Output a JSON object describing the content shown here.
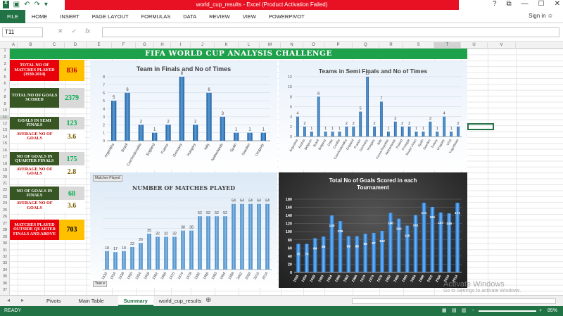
{
  "window": {
    "title": "world_cup_results - Excel (Product Activation Failed)",
    "help": "?",
    "restore": "⧉",
    "minimize": "—",
    "maximize": "☐",
    "close": "✕"
  },
  "ribbon": {
    "tabs": [
      "FILE",
      "HOME",
      "INSERT",
      "PAGE LAYOUT",
      "FORMULAS",
      "DATA",
      "REVIEW",
      "VIEW",
      "POWERPIVOT"
    ],
    "sign_in": "Sign in"
  },
  "formula_bar": {
    "name_box": "T11",
    "value": "",
    "fx": "fx"
  },
  "columns": [
    "A",
    "B",
    "C",
    "D",
    "E",
    "F",
    "G",
    "H",
    "I",
    "J",
    "K",
    "L",
    "M",
    "N",
    "O",
    "P",
    "Q",
    "R",
    "S",
    "T",
    "U",
    "V"
  ],
  "rows": [
    "1",
    "2",
    "3",
    "4",
    "5",
    "6",
    "7",
    "8",
    "9",
    "10",
    "11",
    "12",
    "13",
    "14",
    "15",
    "16",
    "17",
    "18",
    "19",
    "20",
    "21",
    "22",
    "23",
    "24",
    "25",
    "26",
    "27",
    "28",
    "29",
    "30",
    "31",
    "32",
    "33",
    "34",
    "35",
    "36",
    "37"
  ],
  "banner": "FIFA WORLD CUP ANALYSIS CHALLENGE",
  "kpis": [
    {
      "label": "TOTAL NO OF MATCHES PLAYED (1930-2014)",
      "value": "836",
      "label_bg": "#e8000b",
      "value_bg": "#ffc000",
      "value_color": "#c00000"
    },
    {
      "label": "TOTAL NO OF GOALS SCORED",
      "value": "2379",
      "label_bg": "#375623",
      "value_bg": "#d9d9d9",
      "value_color": "#00b050"
    },
    {
      "label": "GOALS IN SEMI FINALS",
      "value": "123",
      "label_bg": "#375623",
      "value_bg": "#d9d9d9",
      "value_color": "#00b050"
    },
    {
      "label": "AVERAGE NO OF GOALS",
      "value": "3.6",
      "label_bg": "#ffffff",
      "label_color": "#c00000",
      "value_bg": "#ffffff",
      "value_color": "#7f6000"
    },
    {
      "label": "NO OF GOALS IN QUARTER FINALS",
      "value": "175",
      "label_bg": "#375623",
      "value_bg": "#d9d9d9",
      "value_color": "#00b050"
    },
    {
      "label": "AVERAGE NO OF GOALS",
      "value": "2.8",
      "label_bg": "#ffffff",
      "label_color": "#c00000",
      "value_bg": "#ffffff",
      "value_color": "#7f6000"
    },
    {
      "label": "NO OF GOALS IN FINALS",
      "value": "68",
      "label_bg": "#375623",
      "value_bg": "#d9d9d9",
      "value_color": "#00b050"
    },
    {
      "label": "AVERAGE NO OF GOALS",
      "value": "3.6",
      "label_bg": "#ffffff",
      "label_color": "#c00000",
      "value_bg": "#ffffff",
      "value_color": "#7f6000"
    },
    {
      "label": "MATCHES PLAYED OUTSIDE QUARTER FINALS AND ABOVE",
      "value": "703",
      "label_bg": "#e8000b",
      "value_bg": "#ffc000",
      "value_color": "#000000"
    }
  ],
  "chart_data": [
    {
      "type": "bar",
      "title": "Team in Finals and No of Times",
      "categories": [
        "Argentina",
        "Brazil",
        "Czechoslovakia",
        "England",
        "France",
        "Germany",
        "Hungary",
        "Italy",
        "Netherlands",
        "Spain",
        "Sweden",
        "Uruguay"
      ],
      "values": [
        5,
        6,
        2,
        1,
        2,
        8,
        2,
        6,
        3,
        1,
        1,
        1
      ],
      "ylim": [
        0,
        8
      ],
      "yticks": [
        "0",
        "1",
        "2",
        "3",
        "4",
        "5",
        "6",
        "7",
        "8"
      ],
      "grid": true
    },
    {
      "type": "bar",
      "title": "Teams in Semi Finals and No of Times",
      "categories": [
        "Argentina",
        "Austria",
        "Belgium",
        "Brazil",
        "Bulgaria",
        "Chile",
        "Croatia",
        "Czechoslovakia",
        "England",
        "France",
        "Germany",
        "Hungary",
        "Italy",
        "Korea Republic",
        "Netherlands",
        "Poland",
        "Portugal",
        "Soviet Union",
        "Spain",
        "Sweden",
        "Turkey",
        "Uruguay",
        "USA",
        "Yugoslavia"
      ],
      "values": [
        4,
        2,
        1,
        8,
        1,
        1,
        1,
        2,
        2,
        5,
        12,
        2,
        7,
        1,
        3,
        2,
        2,
        1,
        1,
        3,
        1,
        4,
        1,
        2
      ],
      "ylim": [
        0,
        12
      ],
      "yticks": [
        "0",
        "2",
        "4",
        "6",
        "8",
        "10",
        "12"
      ],
      "grid": true
    },
    {
      "type": "bar",
      "title": "NUMBER OF MATCHES PLAYED",
      "filter_button": "Matches Played",
      "axis_button": "Year",
      "categories": [
        "1930",
        "1934",
        "1938",
        "1950",
        "1954",
        "1958",
        "1962",
        "1966",
        "1970",
        "1974",
        "1978",
        "1982",
        "1986",
        "1990",
        "1994",
        "1998",
        "2002",
        "2006",
        "2010",
        "2014"
      ],
      "values": [
        18,
        17,
        18,
        22,
        26,
        35,
        32,
        32,
        32,
        38,
        38,
        52,
        52,
        52,
        52,
        64,
        64,
        64,
        64,
        64
      ],
      "ylim": [
        0,
        70
      ],
      "grid": true
    },
    {
      "type": "bar",
      "title": "Total No of Goals Scored in each Tournament",
      "categories": [
        "1930",
        "1934",
        "1938",
        "1950",
        "1954",
        "1958",
        "1962",
        "1966",
        "1970",
        "1974",
        "1978",
        "1982",
        "1986",
        "1990",
        "1994",
        "1998",
        "2002",
        "2006",
        "2010",
        "2014"
      ],
      "values": [
        70,
        70,
        84,
        88,
        140,
        126,
        89,
        89,
        95,
        97,
        102,
        146,
        132,
        115,
        141,
        171,
        161,
        147,
        145,
        171
      ],
      "ylim": [
        0,
        180
      ],
      "yticks": [
        "0",
        "20",
        "40",
        "60",
        "80",
        "100",
        "120",
        "140",
        "160",
        "180"
      ],
      "grid": true
    }
  ],
  "sheet_tabs": [
    "Pivots",
    "Main Table",
    "Summary",
    "world_cup_results"
  ],
  "active_tab": "Summary",
  "status": {
    "ready": "READY",
    "zoom": "85%"
  },
  "watermark": {
    "line1": "Activate Windows",
    "line2": "Go to Settings to activate Windows."
  },
  "colors": {
    "excel_green": "#217346",
    "bar_blue": "#2e75b6",
    "banner_green": "#1ea14b"
  }
}
